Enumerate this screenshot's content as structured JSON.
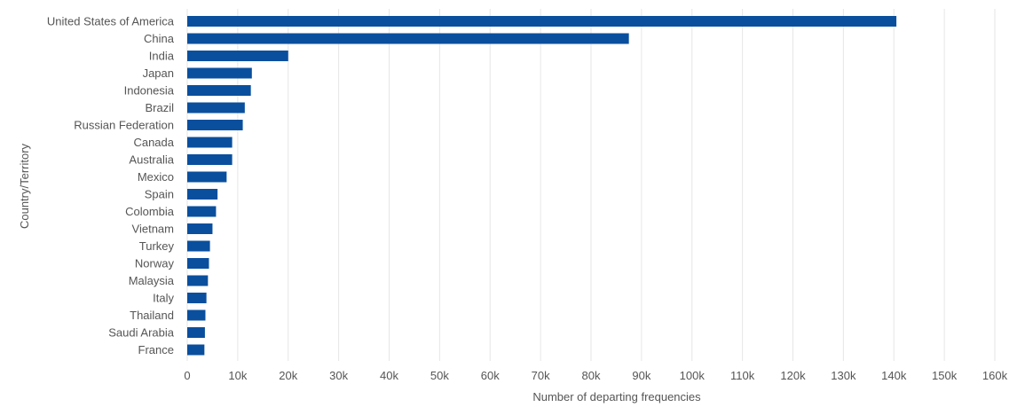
{
  "chart_data": {
    "type": "bar",
    "orientation": "horizontal",
    "title": "",
    "xlabel": "Number of departing frequencies",
    "ylabel": "Country/Territory",
    "categories": [
      "United States of America",
      "China",
      "India",
      "Japan",
      "Indonesia",
      "Brazil",
      "Russian Federation",
      "Canada",
      "Australia",
      "Mexico",
      "Spain",
      "Colombia",
      "Vietnam",
      "Turkey",
      "Norway",
      "Malaysia",
      "Italy",
      "Thailand",
      "Saudi Arabia",
      "France"
    ],
    "values": [
      140500,
      87500,
      20000,
      12800,
      12600,
      11400,
      11000,
      8900,
      8900,
      7800,
      6000,
      5700,
      5000,
      4500,
      4300,
      4100,
      3800,
      3600,
      3500,
      3400
    ],
    "xlim": [
      0,
      160000
    ],
    "xticks": [
      0,
      10000,
      20000,
      30000,
      40000,
      50000,
      60000,
      70000,
      80000,
      90000,
      100000,
      110000,
      120000,
      130000,
      140000,
      150000,
      160000
    ],
    "xtick_labels": [
      "0",
      "10k",
      "20k",
      "30k",
      "40k",
      "50k",
      "60k",
      "70k",
      "80k",
      "90k",
      "100k",
      "110k",
      "120k",
      "130k",
      "140k",
      "150k",
      "160k"
    ],
    "grid": true,
    "legend": "none",
    "colors": {
      "bar": "#0a4f9e",
      "grid": "#e6e6e6",
      "text": "#555555"
    }
  }
}
